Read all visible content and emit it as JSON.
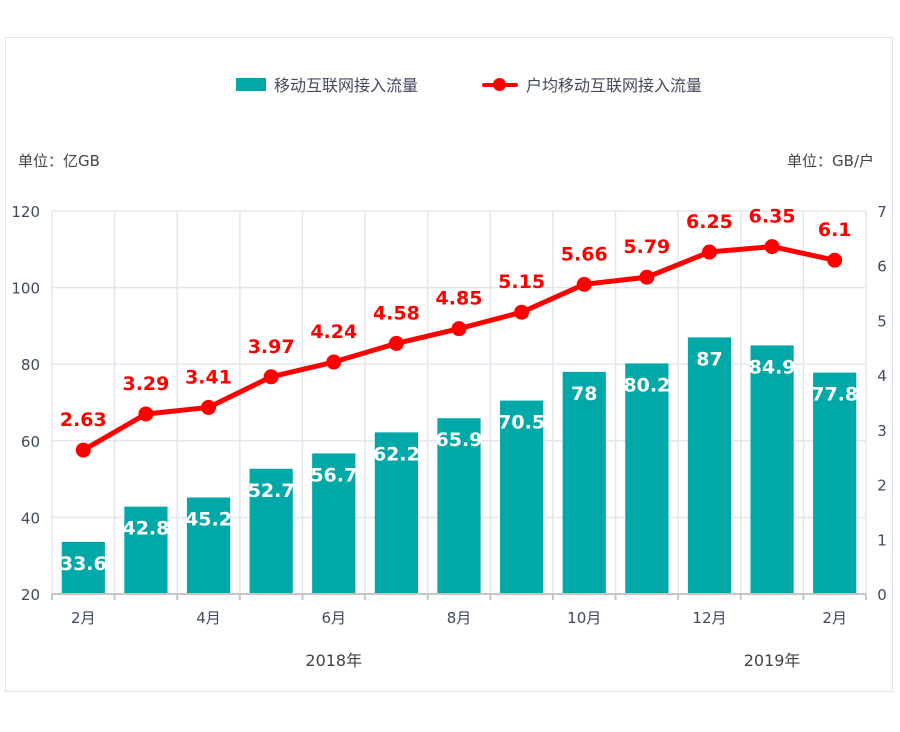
{
  "legend": {
    "bar_series": "移动互联网接入流量",
    "line_series": "户均移动互联网接入流量"
  },
  "units": {
    "left": "单位：亿GB",
    "right": "单位：GB/户"
  },
  "colors": {
    "bar": "#00a8a8",
    "line": "#ff0000",
    "grid": "#e3e6ee",
    "axis": "#c6c6c6"
  },
  "chart_data": {
    "type": "bar",
    "title": "",
    "categories": [
      "2018-02",
      "2018-03",
      "2018-04",
      "2018-05",
      "2018-06",
      "2018-07",
      "2018-08",
      "2018-09",
      "2018-10",
      "2018-11",
      "2018-12",
      "2019-01",
      "2019-02"
    ],
    "x_tick_labels": [
      "2月",
      "",
      "4月",
      "",
      "6月",
      "",
      "8月",
      "",
      "10月",
      "",
      "12月",
      "",
      "2月"
    ],
    "year_labels": [
      {
        "label": "2018年",
        "category_index": 4
      },
      {
        "label": "2019年",
        "category_index": 11
      }
    ],
    "series": [
      {
        "name": "移动互联网接入流量",
        "type": "bar",
        "axis": "left",
        "values": [
          33.6,
          42.8,
          45.2,
          52.7,
          56.7,
          62.2,
          65.9,
          70.5,
          78,
          80.2,
          87,
          84.9,
          77.8
        ],
        "labels": [
          "33.6",
          "42.8",
          "45.2",
          "52.7",
          "56.7",
          "62.2",
          "65.9",
          "70.5",
          "78",
          "80.2",
          "87",
          "84.9",
          "77.8"
        ]
      },
      {
        "name": "户均移动互联网接入流量",
        "type": "line",
        "axis": "right",
        "values": [
          2.63,
          3.29,
          3.41,
          3.97,
          4.24,
          4.58,
          4.85,
          5.15,
          5.66,
          5.79,
          6.25,
          6.35,
          6.1
        ],
        "labels": [
          "2.63",
          "3.29",
          "3.41",
          "3.97",
          "4.24",
          "4.58",
          "4.85",
          "5.15",
          "5.66",
          "5.79",
          "6.25",
          "6.35",
          "6.1"
        ]
      }
    ],
    "y_left": {
      "label": "单位：亿GB",
      "range": [
        20,
        120
      ],
      "ticks": [
        "20",
        "40",
        "60",
        "80",
        "100",
        "120"
      ]
    },
    "y_right": {
      "label": "单位：GB/户",
      "range": [
        0,
        7
      ],
      "ticks": [
        "0",
        "1",
        "2",
        "3",
        "4",
        "5",
        "6",
        "7"
      ]
    },
    "grid": true,
    "legend_position": "top-center"
  }
}
